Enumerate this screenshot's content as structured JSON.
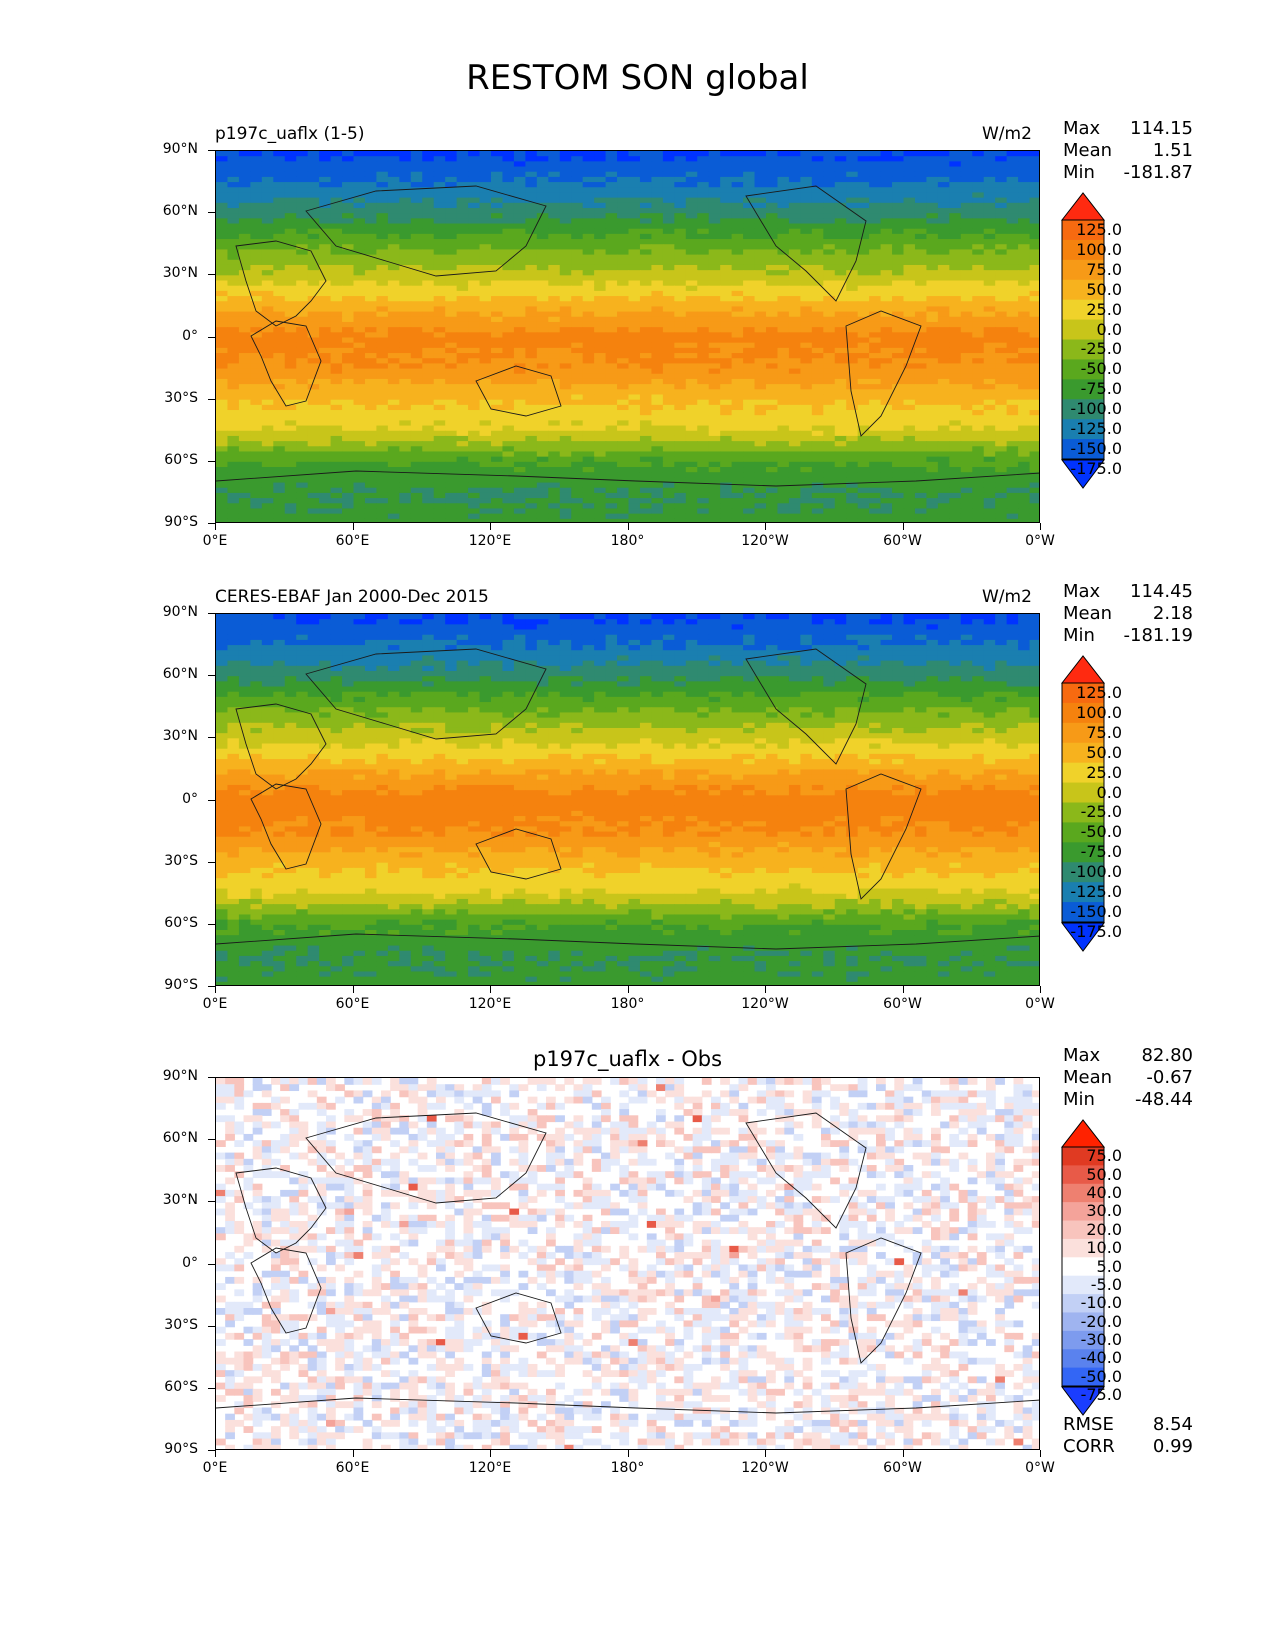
{
  "figure": {
    "title": "RESTOM SON global"
  },
  "panels": [
    {
      "left_title": "p197c_uaflx (1-5)",
      "center_title": "",
      "units": "W/m2",
      "stats": {
        "max_label": "Max",
        "max": "114.15",
        "mean_label": "Mean",
        "mean": "1.51",
        "min_label": "Min",
        "min": "-181.87"
      },
      "colorbar": {
        "labels": [
          "125.0",
          "100.0",
          "75.0",
          "50.0",
          "25.0",
          "0.0",
          "-25.0",
          "-50.0",
          "-75.0",
          "-100.0",
          "-125.0",
          "-150.0",
          "-175.0"
        ]
      }
    },
    {
      "left_title": "CERES-EBAF Jan 2000-Dec 2015",
      "center_title": "",
      "units": "W/m2",
      "stats": {
        "max_label": "Max",
        "max": "114.45",
        "mean_label": "Mean",
        "mean": "2.18",
        "min_label": "Min",
        "min": "-181.19"
      },
      "colorbar": {
        "labels": [
          "125.0",
          "100.0",
          "75.0",
          "50.0",
          "25.0",
          "0.0",
          "-25.0",
          "-50.0",
          "-75.0",
          "-100.0",
          "-125.0",
          "-150.0",
          "-175.0"
        ]
      }
    },
    {
      "left_title": "",
      "center_title": "p197c_uaflx - Obs",
      "units": "",
      "stats": {
        "max_label": "Max",
        "max": "82.80",
        "mean_label": "Mean",
        "mean": "-0.67",
        "min_label": "Min",
        "min": "-48.44"
      },
      "colorbar": {
        "labels": [
          "75.0",
          "50.0",
          "40.0",
          "30.0",
          "20.0",
          "10.0",
          "5.0",
          "-5.0",
          "-10.0",
          "-20.0",
          "-30.0",
          "-40.0",
          "-50.0",
          "-75.0"
        ]
      },
      "metrics": {
        "rmse_label": "RMSE",
        "rmse": "8.54",
        "corr_label": "CORR",
        "corr": "0.99"
      }
    }
  ],
  "axes": {
    "y_ticks": [
      "90°N",
      "60°N",
      "30°N",
      "0°",
      "30°S",
      "60°S",
      "90°S"
    ],
    "x_ticks": [
      "0°E",
      "60°E",
      "120°E",
      "180°",
      "120°W",
      "60°W",
      "0°W"
    ]
  },
  "colors": {
    "abs_levels": [
      "#0033ff",
      "#0a5cd6",
      "#1a7fb0",
      "#2f8a70",
      "#3a9a2e",
      "#5aa81e",
      "#8bb81a",
      "#c8c51a",
      "#f0d22a",
      "#f7b21e",
      "#f79a17",
      "#f5820e",
      "#f76a10",
      "#ff2a10"
    ],
    "diff_levels": [
      "#1a3dff",
      "#3366f5",
      "#5a82ee",
      "#7d9bee",
      "#9fb4f0",
      "#c2d0f5",
      "#e2e9fa",
      "#ffffff",
      "#fbe0dc",
      "#f8c4bd",
      "#f4a39a",
      "#ee8070",
      "#e85a48",
      "#e03a22",
      "#ff2200"
    ]
  },
  "chart_data": [
    {
      "type": "heatmap",
      "title": "p197c_uaflx (1-5)",
      "units": "W/m2",
      "x_range": [
        0,
        360
      ],
      "y_range": [
        -90,
        90
      ],
      "zonal_profile": {
        "lat": [
          90,
          75,
          60,
          45,
          30,
          15,
          0,
          -15,
          -30,
          -45,
          -60,
          -75,
          -90
        ],
        "value": [
          -178,
          -150,
          -110,
          -60,
          -15,
          40,
          85,
          70,
          30,
          0,
          -75,
          -100,
          -90
        ]
      },
      "stats": {
        "max": 114.15,
        "mean": 1.51,
        "min": -181.87
      },
      "levels": [
        -175,
        -150,
        -125,
        -100,
        -75,
        -50,
        -25,
        0,
        25,
        50,
        75,
        100,
        125
      ]
    },
    {
      "type": "heatmap",
      "title": "CERES-EBAF Jan 2000-Dec 2015",
      "units": "W/m2",
      "x_range": [
        0,
        360
      ],
      "y_range": [
        -90,
        90
      ],
      "zonal_profile": {
        "lat": [
          90,
          75,
          60,
          45,
          30,
          15,
          0,
          -15,
          -30,
          -45,
          -60,
          -75,
          -90
        ],
        "value": [
          -178,
          -150,
          -108,
          -55,
          -10,
          45,
          90,
          75,
          35,
          0,
          -75,
          -100,
          -90
        ]
      },
      "stats": {
        "max": 114.45,
        "mean": 2.18,
        "min": -181.19
      },
      "levels": [
        -175,
        -150,
        -125,
        -100,
        -75,
        -50,
        -25,
        0,
        25,
        50,
        75,
        100,
        125
      ]
    },
    {
      "type": "heatmap",
      "title": "p197c_uaflx - Obs",
      "x_range": [
        0,
        360
      ],
      "y_range": [
        -90,
        90
      ],
      "stats": {
        "max": 82.8,
        "mean": -0.67,
        "min": -48.44,
        "rmse": 8.54,
        "corr": 0.99
      },
      "levels": [
        -75,
        -50,
        -40,
        -30,
        -20,
        -10,
        -5,
        5,
        10,
        20,
        30,
        40,
        50,
        75
      ]
    }
  ]
}
